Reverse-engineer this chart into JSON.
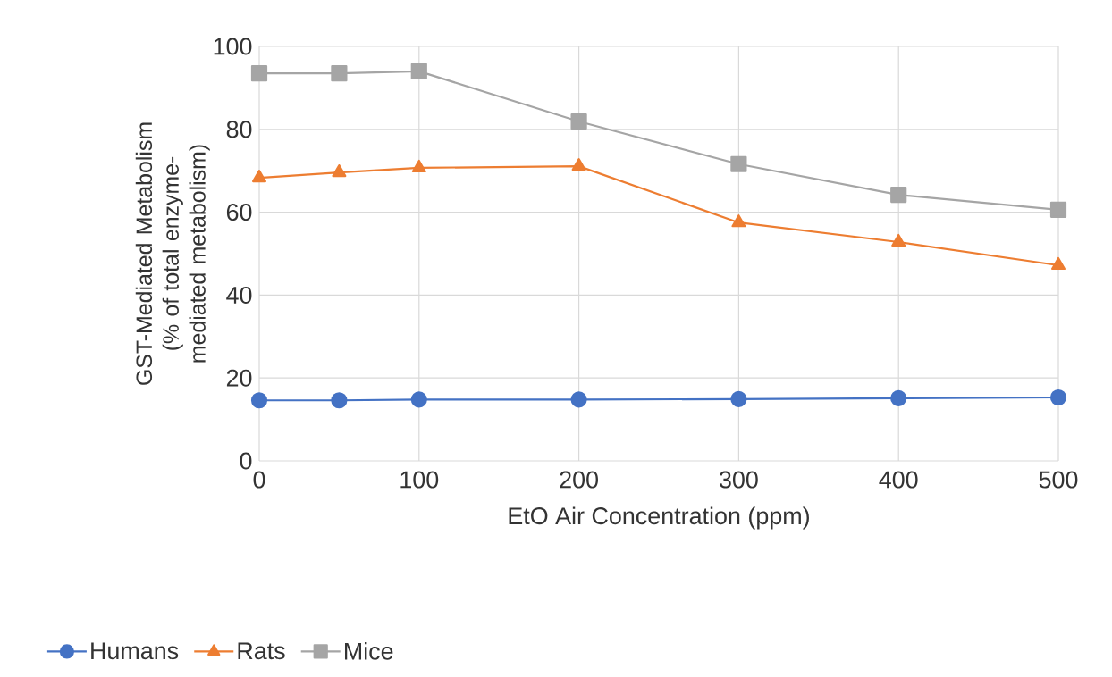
{
  "chart_data": {
    "type": "line",
    "xlabel": "EtO Air Concentration (ppm)",
    "ylabel": "GST-Mediated Metabolism (% of total enzyme-mediated metabolism)",
    "x": [
      0,
      50,
      100,
      200,
      300,
      400,
      500
    ],
    "series": [
      {
        "name": "Humans",
        "color": "#4472c4",
        "marker": "circle",
        "values": [
          14.6,
          14.6,
          14.8,
          14.8,
          14.9,
          15.1,
          15.3
        ]
      },
      {
        "name": "Rats",
        "color": "#ed7d31",
        "marker": "triangle",
        "values": [
          68.3,
          69.6,
          70.7,
          71.1,
          57.5,
          52.8,
          47.2
        ]
      },
      {
        "name": "Mice",
        "color": "#a5a5a5",
        "marker": "square",
        "values": [
          93.5,
          93.5,
          94.0,
          81.9,
          71.6,
          64.2,
          60.6
        ]
      }
    ],
    "xlim": [
      0,
      500
    ],
    "xticks": [
      0,
      100,
      200,
      300,
      400,
      500
    ],
    "ylim": [
      0,
      100
    ],
    "yticks": [
      0,
      20,
      40,
      60,
      80,
      100
    ],
    "grid": true,
    "legend": "bottom left",
    "line_style": "solid"
  }
}
